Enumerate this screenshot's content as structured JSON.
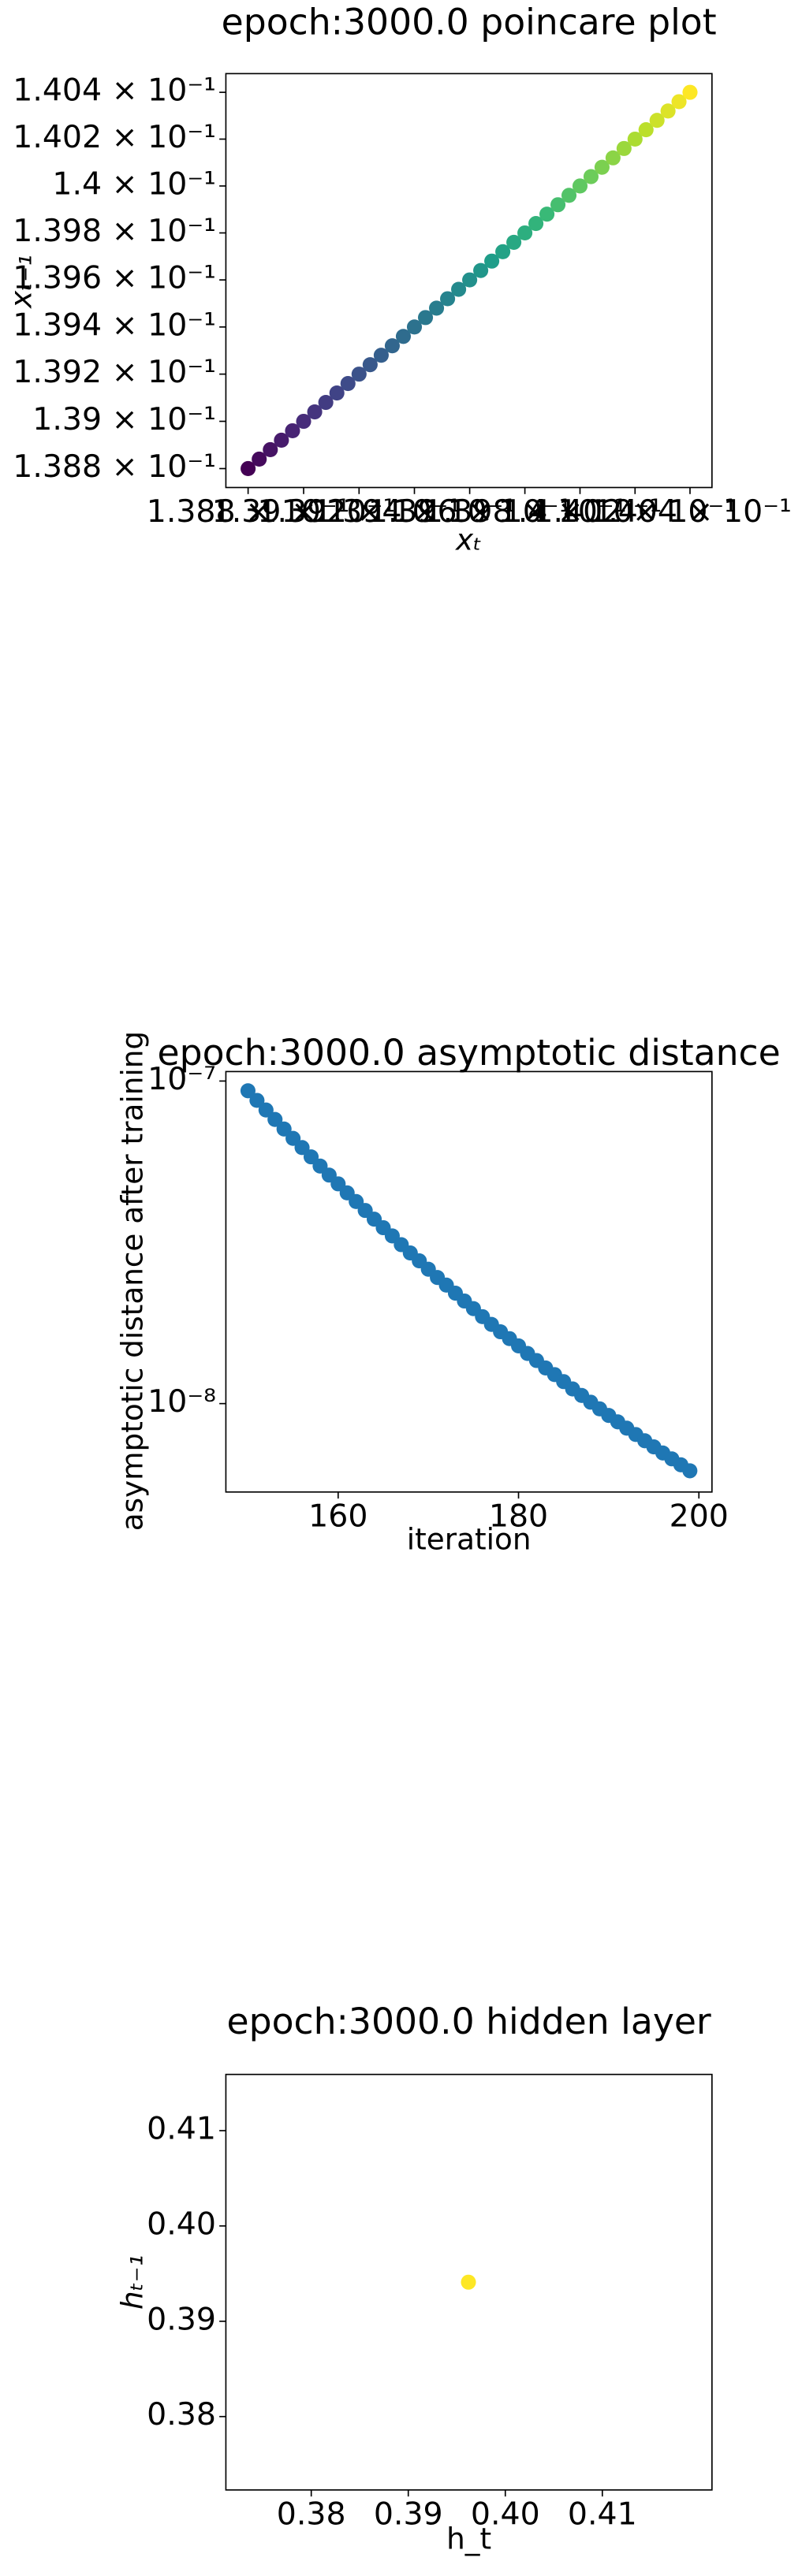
{
  "chart_data": [
    {
      "type": "scatter",
      "title": "epoch:3000.0 poincare plot",
      "x_label": "xₜ",
      "y_label": "xₜ₋₁",
      "xscale": "log",
      "yscale": "log",
      "colormap": "viridis",
      "xlim": [
        0.13872,
        0.14048
      ],
      "ylim": [
        0.13872,
        0.14048
      ],
      "xticks": [
        {
          "value": 0.1388,
          "label": "1.388 × 10⁻¹"
        },
        {
          "value": 0.139,
          "label": "1.39 × 10⁻¹"
        },
        {
          "value": 0.1392,
          "label": "1.392 × 10⁻¹"
        },
        {
          "value": 0.1394,
          "label": "1.394 × 10⁻¹"
        },
        {
          "value": 0.1396,
          "label": "1.396 × 10⁻¹"
        },
        {
          "value": 0.1398,
          "label": "1.398 × 10⁻¹"
        },
        {
          "value": 0.14,
          "label": "1.4 × 10⁻¹"
        },
        {
          "value": 0.1402,
          "label": "1.402 × 10⁻¹"
        },
        {
          "value": 0.1404,
          "label": "1.404 × 10⁻¹"
        }
      ],
      "yticks": [
        {
          "value": 0.1388,
          "label": "1.388 × 10⁻¹"
        },
        {
          "value": 0.139,
          "label": "1.39 × 10⁻¹"
        },
        {
          "value": 0.1392,
          "label": "1.392 × 10⁻¹"
        },
        {
          "value": 0.1394,
          "label": "1.394 × 10⁻¹"
        },
        {
          "value": 0.1396,
          "label": "1.396 × 10⁻¹"
        },
        {
          "value": 0.1398,
          "label": "1.398 × 10⁻¹"
        },
        {
          "value": 0.14,
          "label": "1.4 × 10⁻¹"
        },
        {
          "value": 0.1402,
          "label": "1.402 × 10⁻¹"
        },
        {
          "value": 0.1404,
          "label": "1.404 × 10⁻¹"
        }
      ],
      "x": [
        0.1388,
        0.13884,
        0.13888,
        0.13892,
        0.13896,
        0.139,
        0.13904,
        0.13908,
        0.13912,
        0.13916,
        0.1392,
        0.13924,
        0.13928,
        0.13932,
        0.13936,
        0.1394,
        0.13944,
        0.13948,
        0.13952,
        0.13956,
        0.1396,
        0.13964,
        0.13968,
        0.13972,
        0.13976,
        0.1398,
        0.13984,
        0.13988,
        0.13992,
        0.13996,
        0.14,
        0.14004,
        0.14008,
        0.14012,
        0.14016,
        0.1402,
        0.14024,
        0.14028,
        0.14032,
        0.14036,
        0.1404
      ],
      "values": [
        0.1388,
        0.13884,
        0.13888,
        0.13892,
        0.13896,
        0.139,
        0.13904,
        0.13908,
        0.13912,
        0.13916,
        0.1392,
        0.13924,
        0.13928,
        0.13932,
        0.13936,
        0.1394,
        0.13944,
        0.13948,
        0.13952,
        0.13956,
        0.1396,
        0.13964,
        0.13968,
        0.13972,
        0.13976,
        0.1398,
        0.13984,
        0.13988,
        0.13992,
        0.13996,
        0.14,
        0.14004,
        0.14008,
        0.14012,
        0.14016,
        0.1402,
        0.14024,
        0.14028,
        0.14032,
        0.14036,
        0.1404
      ]
    },
    {
      "type": "scatter",
      "title": "epoch:3000.0 asymptotic distance",
      "x_label": "iteration",
      "y_label": "asymptotic distance after training",
      "yscale": "log",
      "color": "#1f77b4",
      "xlim": [
        147.55,
        201.45
      ],
      "ylim": [
        5.32e-09,
        1.07e-07
      ],
      "xticks": [
        160,
        180,
        200
      ],
      "yticks": [
        {
          "value": 1e-07,
          "label": "10⁻⁷"
        },
        {
          "value": 1e-08,
          "label": "10⁻⁸"
        }
      ],
      "x": [
        150,
        151,
        152,
        153,
        154,
        155,
        156,
        157,
        158,
        159,
        160,
        161,
        162,
        163,
        164,
        165,
        166,
        167,
        168,
        169,
        170,
        171,
        172,
        173,
        174,
        175,
        176,
        177,
        178,
        179,
        180,
        181,
        182,
        183,
        184,
        185,
        186,
        187,
        188,
        189,
        190,
        191,
        192,
        193,
        194,
        195,
        196,
        197,
        198,
        199
      ],
      "values": [
        9.33e-08,
        8.71e-08,
        8.13e-08,
        7.6e-08,
        7.1e-08,
        6.64e-08,
        6.22e-08,
        5.82e-08,
        5.45e-08,
        5.11e-08,
        4.8e-08,
        4.5e-08,
        4.23e-08,
        3.97e-08,
        3.73e-08,
        3.51e-08,
        3.31e-08,
        3.11e-08,
        2.93e-08,
        2.77e-08,
        2.61e-08,
        2.46e-08,
        2.33e-08,
        2.2e-08,
        2.08e-08,
        1.97e-08,
        1.86e-08,
        1.76e-08,
        1.67e-08,
        1.59e-08,
        1.51e-08,
        1.43e-08,
        1.36e-08,
        1.29e-08,
        1.23e-08,
        1.17e-08,
        1.11e-08,
        1.06e-08,
        1.01e-08,
        9.63e-09,
        9.19e-09,
        8.78e-09,
        8.39e-09,
        8.02e-09,
        7.67e-09,
        7.34e-09,
        7.03e-09,
        6.74e-09,
        6.46e-09,
        6.19e-09
      ]
    },
    {
      "type": "scatter",
      "title": "epoch:3000.0 hidden layer",
      "x_label": "h_t",
      "y_label": "hₜ₋₁",
      "color": "#fde725",
      "xlim": [
        0.3712,
        0.4213
      ],
      "ylim": [
        0.3723,
        0.4159
      ],
      "xticks": [
        {
          "value": 0.38,
          "label": "0.38"
        },
        {
          "value": 0.39,
          "label": "0.39"
        },
        {
          "value": 0.4,
          "label": "0.40"
        },
        {
          "value": 0.41,
          "label": "0.41"
        }
      ],
      "yticks": [
        {
          "value": 0.38,
          "label": "0.38"
        },
        {
          "value": 0.39,
          "label": "0.39"
        },
        {
          "value": 0.4,
          "label": "0.40"
        },
        {
          "value": 0.41,
          "label": "0.41"
        }
      ],
      "x": [
        0.3962
      ],
      "values": [
        0.3941
      ]
    }
  ]
}
